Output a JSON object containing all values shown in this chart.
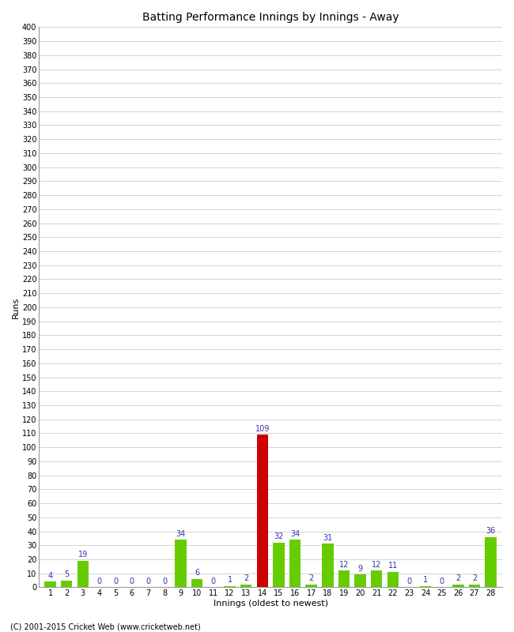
{
  "title": "Batting Performance Innings by Innings - Away",
  "xlabel": "Innings (oldest to newest)",
  "ylabel": "Runs",
  "values": [
    4,
    5,
    19,
    0,
    0,
    0,
    0,
    0,
    34,
    6,
    0,
    1,
    2,
    109,
    32,
    34,
    2,
    31,
    12,
    9,
    12,
    11,
    0,
    1,
    0,
    2,
    2,
    36
  ],
  "innings": [
    1,
    2,
    3,
    4,
    5,
    6,
    7,
    8,
    9,
    10,
    11,
    12,
    13,
    14,
    15,
    16,
    17,
    18,
    19,
    20,
    21,
    22,
    23,
    24,
    25,
    26,
    27,
    28
  ],
  "highlight_index": 13,
  "bar_color_normal": "#66cc00",
  "bar_color_highlight": "#cc0000",
  "background_color": "#ffffff",
  "grid_color": "#cccccc",
  "annotation_color": "#3333aa",
  "ylim": [
    0,
    400
  ],
  "yticks": [
    0,
    10,
    20,
    30,
    40,
    50,
    60,
    70,
    80,
    90,
    100,
    110,
    120,
    130,
    140,
    150,
    160,
    170,
    180,
    190,
    200,
    210,
    220,
    230,
    240,
    250,
    260,
    270,
    280,
    290,
    300,
    310,
    320,
    330,
    340,
    350,
    360,
    370,
    380,
    390,
    400
  ],
  "footer": "(C) 2001-2015 Cricket Web (www.cricketweb.net)",
  "title_fontsize": 10,
  "axis_label_fontsize": 8,
  "tick_fontsize": 7,
  "annotation_fontsize": 7,
  "footer_fontsize": 7
}
